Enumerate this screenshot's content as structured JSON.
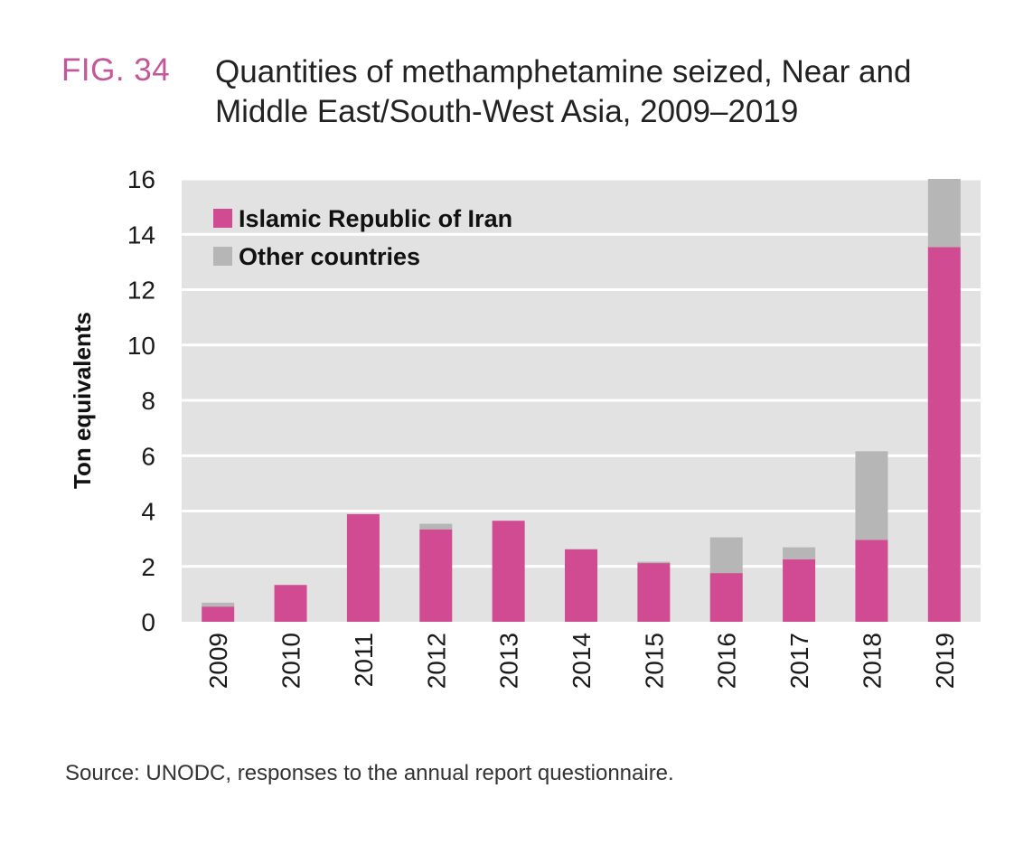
{
  "figure_label": "FIG. 34",
  "title": "Quantities of methamphetamine seized, Near and Middle East/South-West Asia, 2009–2019",
  "source": "Source: UNODC, responses to the annual report questionnaire.",
  "chart_data": {
    "type": "bar",
    "stacked": true,
    "title": "Quantities of methamphetamine seized, Near and Middle East/South-West Asia, 2009–2019",
    "xlabel": "",
    "ylabel": "Ton equivalents",
    "ylim": [
      0,
      16
    ],
    "yticks": [
      0,
      2,
      4,
      6,
      8,
      10,
      12,
      14,
      16
    ],
    "grid": true,
    "legend_position": "top-left",
    "categories": [
      "2009",
      "2010",
      "2011",
      "2012",
      "2013",
      "2014",
      "2015",
      "2016",
      "2017",
      "2018",
      "2019"
    ],
    "series": [
      {
        "name": "Islamic Republic of Iran",
        "color": "#d14b92",
        "values": [
          0.55,
          1.33,
          3.89,
          3.34,
          3.65,
          2.62,
          2.12,
          1.76,
          2.26,
          2.96,
          13.54
        ]
      },
      {
        "name": "Other countries",
        "color": "#b5b6b5",
        "values": [
          0.14,
          0,
          0,
          0.2,
          0,
          0,
          0.05,
          1.29,
          0.43,
          3.2,
          2.46
        ]
      }
    ],
    "plot_background": "#e1e2e1"
  }
}
